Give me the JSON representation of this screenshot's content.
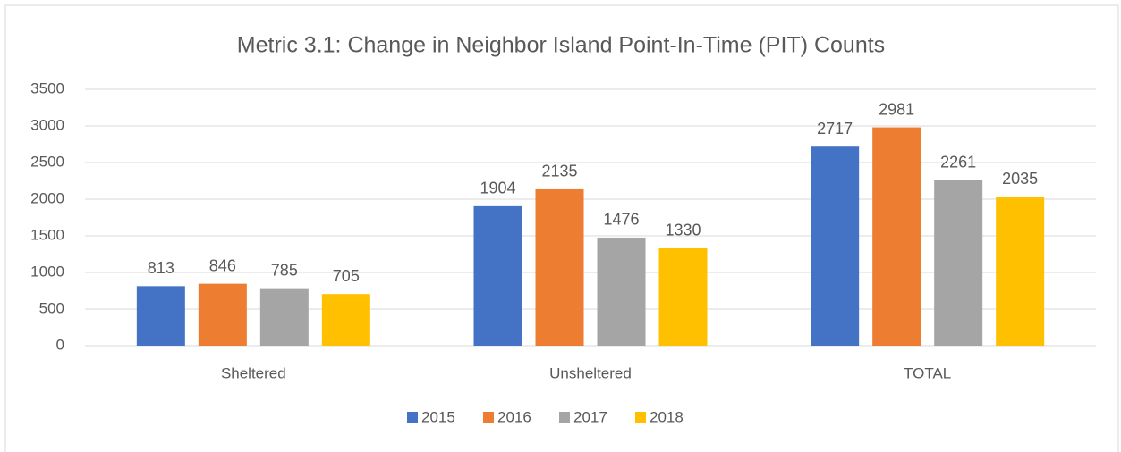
{
  "chart_data": {
    "type": "bar",
    "title": "Metric 3.1: Change in Neighbor Island Point-In-Time (PIT) Counts",
    "categories": [
      "Sheltered",
      "Unsheltered",
      "TOTAL"
    ],
    "series": [
      {
        "name": "2015",
        "color": "#4472c4",
        "values": [
          813,
          1904,
          2717
        ]
      },
      {
        "name": "2016",
        "color": "#ed7d31",
        "values": [
          846,
          2135,
          2981
        ]
      },
      {
        "name": "2017",
        "color": "#a5a5a5",
        "values": [
          785,
          1476,
          2261
        ]
      },
      {
        "name": "2018",
        "color": "#ffc000",
        "values": [
          705,
          1330,
          2035
        ]
      }
    ],
    "ylim": [
      0,
      3500
    ],
    "yticks": [
      0,
      500,
      1000,
      1500,
      2000,
      2500,
      3000,
      3500
    ],
    "grid": true,
    "legend": "bottom"
  }
}
